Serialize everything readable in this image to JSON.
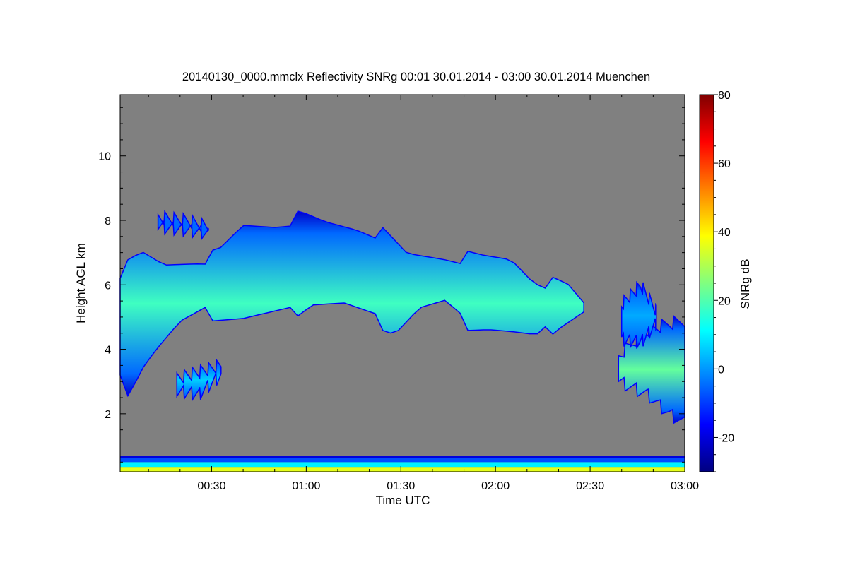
{
  "chart_data": {
    "type": "heatmap",
    "title": "20140130_0000.mmclx Reflectivity SNRg   00:01 30.01.2014 - 03:00 30.01.2014 Muenchen",
    "xlabel": "Time UTC",
    "ylabel": "Height AGL km",
    "colorbar_label": "SNRg dB",
    "x_unit": "minutes after 00:00 UTC",
    "xlim": [
      1,
      180
    ],
    "ylim": [
      0.2,
      11.9
    ],
    "x_ticks": [
      {
        "value": 30,
        "label": "00:30"
      },
      {
        "value": 60,
        "label": "01:00"
      },
      {
        "value": 90,
        "label": "01:30"
      },
      {
        "value": 120,
        "label": "02:00"
      },
      {
        "value": 150,
        "label": "02:30"
      },
      {
        "value": 180,
        "label": "03:00"
      }
    ],
    "y_ticks": [
      {
        "value": 2,
        "label": "2"
      },
      {
        "value": 4,
        "label": "4"
      },
      {
        "value": 6,
        "label": "6"
      },
      {
        "value": 8,
        "label": "8"
      },
      {
        "value": 10,
        "label": "10"
      }
    ],
    "colorbar_range": [
      -30,
      80
    ],
    "colorbar_ticks": [
      {
        "value": -20,
        "label": "-20"
      },
      {
        "value": 0,
        "label": "0"
      },
      {
        "value": 20,
        "label": "20"
      },
      {
        "value": 40,
        "label": "40"
      },
      {
        "value": 60,
        "label": "60"
      },
      {
        "value": 80,
        "label": "80"
      }
    ],
    "no_signal_color": "#808080",
    "colormap": [
      "#000080",
      "#0000ff",
      "#0080ff",
      "#00ffff",
      "#80ff80",
      "#ffff00",
      "#ff8000",
      "#ff0000",
      "#800000"
    ],
    "echo_regions": [
      {
        "name": "main-upper-cloud",
        "top": [
          [
            1,
            6.4
          ],
          [
            8,
            6.9
          ],
          [
            15,
            6.6
          ],
          [
            25,
            6.8
          ],
          [
            32,
            6.9
          ],
          [
            40,
            7.8
          ],
          [
            50,
            7.9
          ],
          [
            58,
            8.1
          ],
          [
            66,
            7.9
          ],
          [
            76,
            7.8
          ],
          [
            84,
            7.6
          ],
          [
            92,
            6.9
          ],
          [
            104,
            6.9
          ],
          [
            116,
            6.8
          ],
          [
            125,
            6.8
          ],
          [
            132,
            6.2
          ],
          [
            143,
            5.9
          ],
          [
            148,
            5.4
          ]
        ],
        "base": [
          [
            1,
            3.0
          ],
          [
            4,
            2.7
          ],
          [
            7,
            3.4
          ],
          [
            12,
            4.0
          ],
          [
            20,
            4.8
          ],
          [
            28,
            5.1
          ],
          [
            40,
            5.0
          ],
          [
            55,
            5.1
          ],
          [
            62,
            5.5
          ],
          [
            72,
            5.4
          ],
          [
            80,
            5.0
          ],
          [
            88,
            4.6
          ],
          [
            96,
            5.3
          ],
          [
            104,
            5.4
          ],
          [
            110,
            4.8
          ],
          [
            118,
            4.7
          ],
          [
            126,
            4.5
          ],
          [
            133,
            4.3
          ],
          [
            140,
            4.8
          ],
          [
            148,
            5.2
          ]
        ],
        "core": 18
      },
      {
        "name": "lower-cloud-patch",
        "top": [
          [
            19,
            3.1
          ],
          [
            26,
            3.3
          ],
          [
            33,
            3.5
          ]
        ],
        "base": [
          [
            19,
            2.7
          ],
          [
            26,
            2.6
          ],
          [
            33,
            3.2
          ]
        ],
        "core": 6
      },
      {
        "name": "upper-left-fragment",
        "top": [
          [
            13,
            8.1
          ],
          [
            22,
            8.0
          ],
          [
            29,
            7.8
          ]
        ],
        "base": [
          [
            13,
            7.8
          ],
          [
            22,
            7.7
          ],
          [
            29,
            7.6
          ]
        ],
        "core": -5
      },
      {
        "name": "right-edge-cloud",
        "top": [
          [
            159,
            3.8
          ],
          [
            168,
            4.6
          ],
          [
            175,
            4.8
          ],
          [
            180,
            4.9
          ]
        ],
        "base": [
          [
            159,
            3.0
          ],
          [
            168,
            2.6
          ],
          [
            175,
            2.0
          ],
          [
            180,
            1.7
          ]
        ],
        "core": 22
      },
      {
        "name": "right-upper-fragment",
        "top": [
          [
            160,
            5.4
          ],
          [
            166,
            6.0
          ],
          [
            171,
            5.2
          ]
        ],
        "base": [
          [
            160,
            4.3
          ],
          [
            166,
            4.2
          ],
          [
            171,
            4.8
          ]
        ],
        "core": 2
      }
    ],
    "ground_layers": [
      {
        "height_range": [
          0.2,
          0.35
        ],
        "snr": 36
      },
      {
        "height_range": [
          0.35,
          0.5
        ],
        "snr": 10
      },
      {
        "height_range": [
          0.5,
          0.62
        ],
        "snr": -8
      },
      {
        "height_range": [
          0.62,
          0.7
        ],
        "snr": -20
      }
    ]
  }
}
